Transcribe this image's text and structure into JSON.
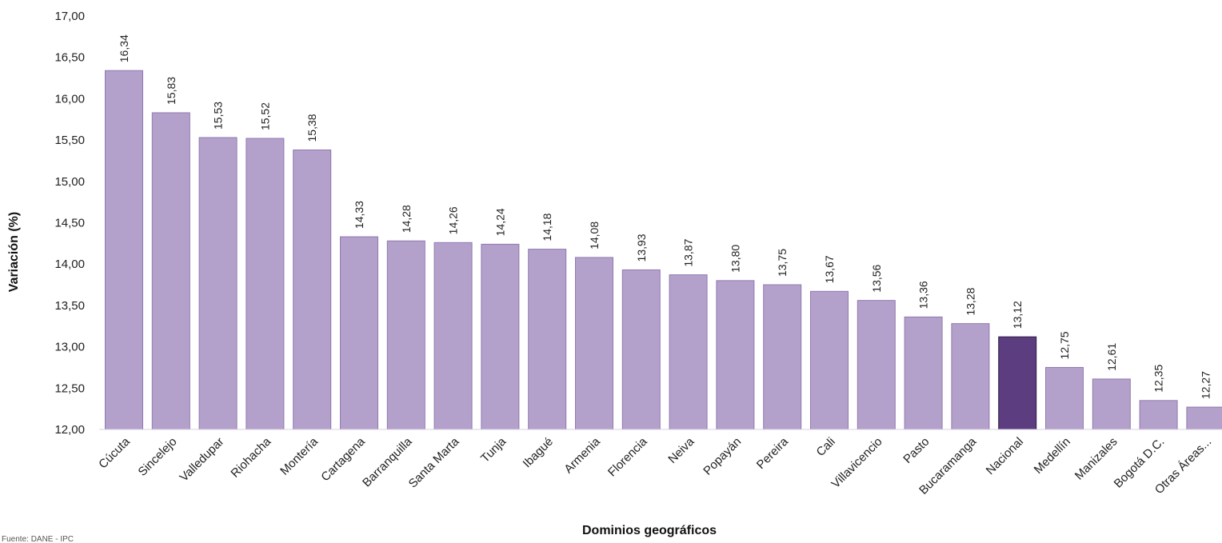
{
  "chart_data": {
    "type": "bar",
    "xlabel": "Dominios geográficos",
    "ylabel": "Variación (%)",
    "ylim": [
      12,
      17
    ],
    "yticks": [
      "12,00",
      "12,50",
      "13,00",
      "13,50",
      "14,00",
      "14,50",
      "15,00",
      "15,50",
      "16,00",
      "16,50",
      "17,00"
    ],
    "categories": [
      "Cúcuta",
      "Sincelejo",
      "Valledupar",
      "Riohacha",
      "Montería",
      "Cartagena",
      "Barranquilla",
      "Santa Marta",
      "Tunja",
      "Ibagué",
      "Armenia",
      "Florencia",
      "Neiva",
      "Popayán",
      "Pereira",
      "Cali",
      "Villavicencio",
      "Pasto",
      "Bucaramanga",
      "Nacional",
      "Medellín",
      "Manizales",
      "Bogotá D.C.",
      "Otras Áreas..."
    ],
    "values": [
      16.34,
      15.83,
      15.53,
      15.52,
      15.38,
      14.33,
      14.28,
      14.26,
      14.24,
      14.18,
      14.08,
      13.93,
      13.87,
      13.8,
      13.75,
      13.67,
      13.56,
      13.36,
      13.28,
      13.12,
      12.75,
      12.61,
      12.35,
      12.27
    ],
    "value_labels": [
      "16,34",
      "15,83",
      "15,53",
      "15,52",
      "15,38",
      "14,33",
      "14,28",
      "14,26",
      "14,24",
      "14,18",
      "14,08",
      "13,93",
      "13,87",
      "13,80",
      "13,75",
      "13,67",
      "13,56",
      "13,36",
      "13,28",
      "13,12",
      "12,75",
      "12,61",
      "12,35",
      "12,27"
    ],
    "highlight": "Nacional",
    "colors": {
      "bar": "#b3a1cc",
      "highlight": "#5c3d80",
      "bar_edge": "#8f7aae"
    },
    "grid": false,
    "legend": "none",
    "source_note": "Fuente: DANE - IPC"
  }
}
